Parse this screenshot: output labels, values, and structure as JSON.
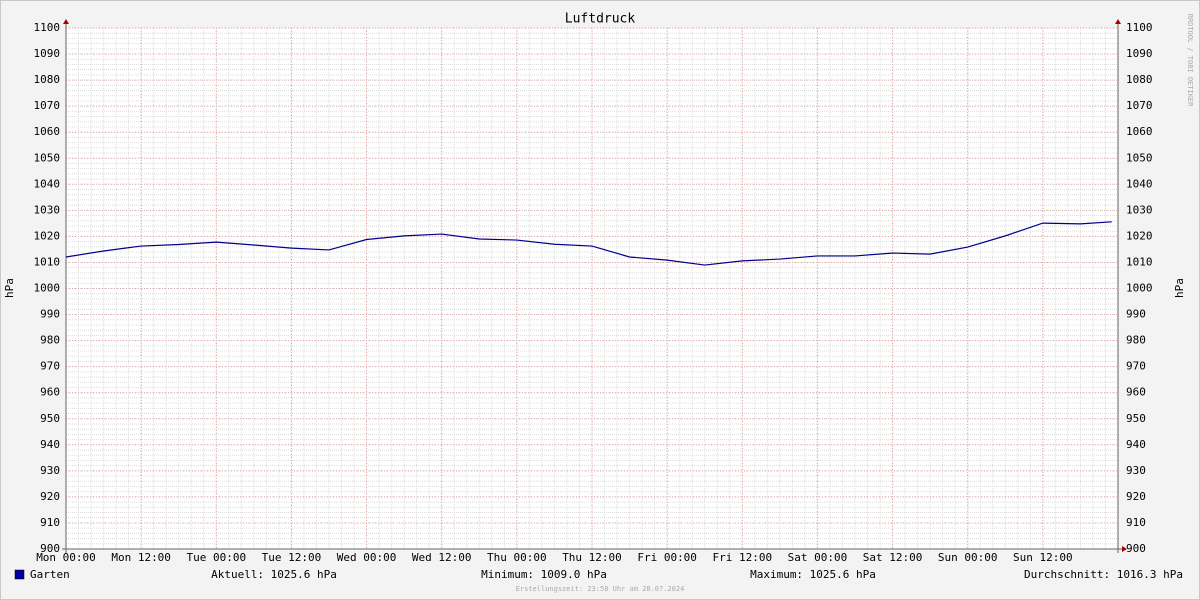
{
  "chart_data": {
    "type": "line",
    "title": "Luftdruck",
    "y_label": "hPa",
    "watermark": "RRDTOOL / TOBI OETIKER",
    "xlim": [
      0,
      168
    ],
    "xticks": [
      {
        "value": 0,
        "label": "Mon 00:00"
      },
      {
        "value": 12,
        "label": "Mon 12:00"
      },
      {
        "value": 24,
        "label": "Tue 00:00"
      },
      {
        "value": 36,
        "label": "Tue 12:00"
      },
      {
        "value": 48,
        "label": "Wed 00:00"
      },
      {
        "value": 60,
        "label": "Wed 12:00"
      },
      {
        "value": 72,
        "label": "Thu 00:00"
      },
      {
        "value": 84,
        "label": "Thu 12:00"
      },
      {
        "value": 96,
        "label": "Fri 00:00"
      },
      {
        "value": 108,
        "label": "Fri 12:00"
      },
      {
        "value": 120,
        "label": "Sat 00:00"
      },
      {
        "value": 132,
        "label": "Sat 12:00"
      },
      {
        "value": 144,
        "label": "Sun 00:00"
      },
      {
        "value": 156,
        "label": "Sun 12:00"
      }
    ],
    "ylim": [
      900,
      1100
    ],
    "yticks": [
      900,
      910,
      920,
      930,
      940,
      950,
      960,
      970,
      980,
      990,
      1000,
      1010,
      1020,
      1030,
      1040,
      1050,
      1060,
      1070,
      1080,
      1090,
      1100
    ],
    "grid": true,
    "x": [
      0,
      6,
      12,
      18,
      24,
      30,
      36,
      42,
      48,
      54,
      60,
      66,
      72,
      78,
      84,
      90,
      96,
      102,
      108,
      114,
      120,
      126,
      132,
      138,
      144,
      150,
      156,
      162,
      167
    ],
    "series": [
      {
        "name": "Garten",
        "color": "#00008b",
        "values": [
          1012.1,
          1014.4,
          1016.3,
          1016.9,
          1017.8,
          1016.7,
          1015.5,
          1014.8,
          1018.8,
          1020.2,
          1020.9,
          1019.0,
          1018.6,
          1017.0,
          1016.3,
          1012.1,
          1010.9,
          1009.0,
          1010.6,
          1011.3,
          1012.5,
          1012.5,
          1013.6,
          1013.2,
          1015.9,
          1020.2,
          1025.1,
          1024.8,
          1025.6
        ]
      }
    ],
    "stats": [
      "Aktuell: 1025.6 hPa",
      "Minimum: 1009.0 hPa",
      "Maximum: 1025.6 hPa",
      "Durchschnitt: 1016.3 hPa"
    ],
    "footer": "Erstellungszeit: 23:58 Uhr am 28.07.2024"
  }
}
